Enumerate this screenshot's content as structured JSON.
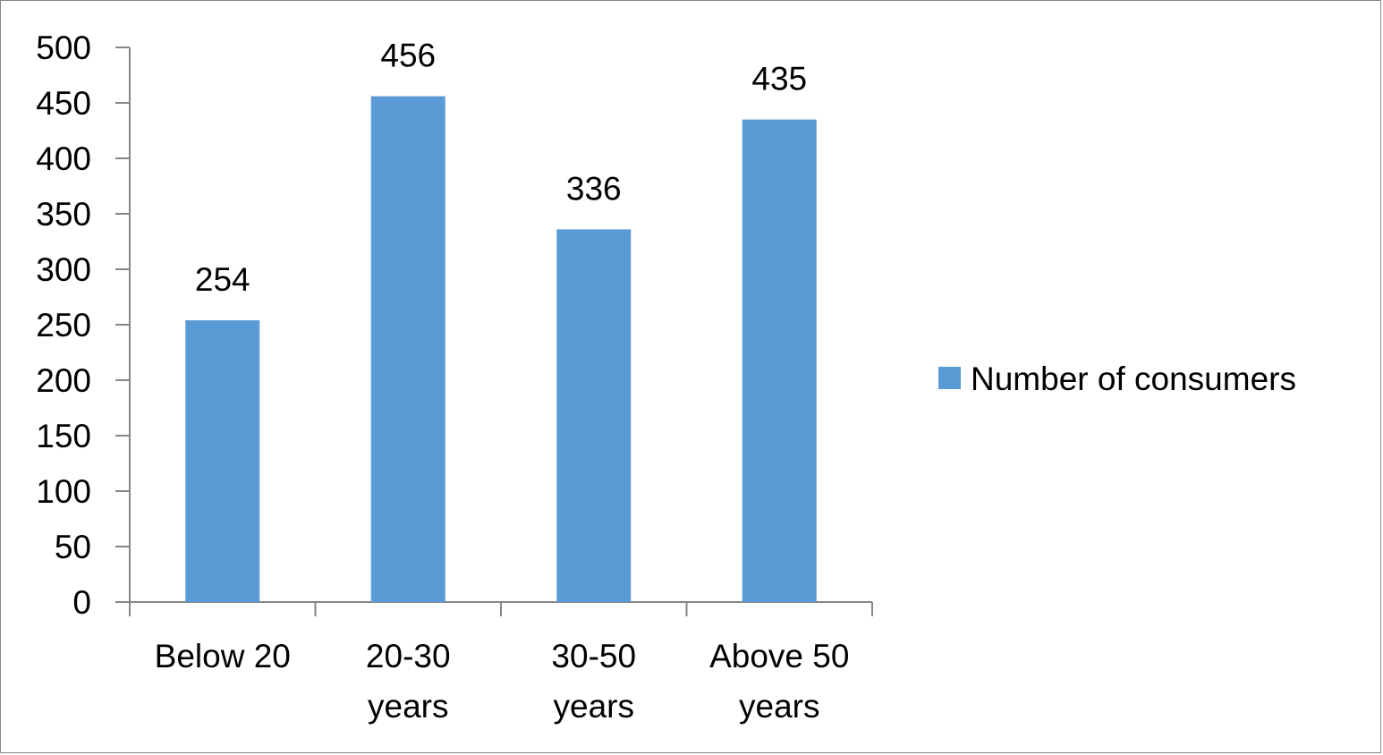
{
  "chart_data": {
    "type": "bar",
    "title": "",
    "xlabel": "",
    "ylabel": "",
    "categories": [
      [
        "Below 20"
      ],
      [
        "20-30",
        "years"
      ],
      [
        "30-50",
        "years"
      ],
      [
        "Above 50",
        "years"
      ]
    ],
    "series": [
      {
        "name": "Number of consumers",
        "values": [
          254,
          456,
          336,
          435
        ],
        "color": "#5B9BD5"
      }
    ],
    "ylim": [
      0,
      500
    ],
    "yticks": [
      0,
      50,
      100,
      150,
      200,
      250,
      300,
      350,
      400,
      450,
      500
    ],
    "grid": false,
    "legend_position": "right",
    "data_labels": true
  }
}
